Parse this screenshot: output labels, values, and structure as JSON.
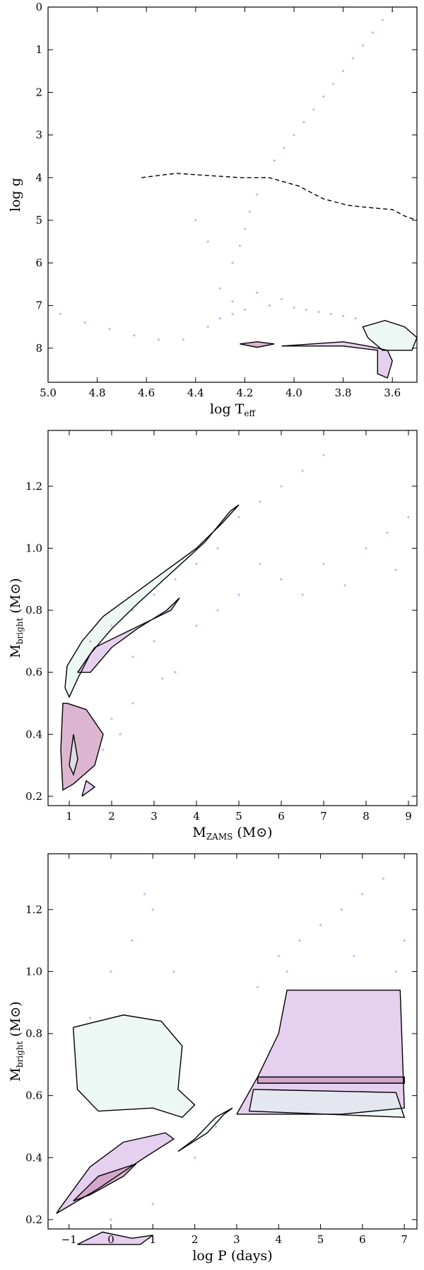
{
  "chart_data": [
    {
      "type": "scatter",
      "xlabel": "log T",
      "xlabel_sub": "eff",
      "ylabel": "log g",
      "xlim": [
        5.0,
        3.5
      ],
      "ylim": [
        8.8,
        0
      ],
      "x_ticks": [
        "5.0",
        "4.8",
        "4.6",
        "4.4",
        "4.2",
        "4.0",
        "3.8",
        "3.6"
      ],
      "y_ticks": [
        "0",
        "1",
        "2",
        "3",
        "4",
        "5",
        "6",
        "7",
        "8"
      ],
      "colors": {
        "points": "#b9c0ea",
        "density_low": "#e3f2ee",
        "density_mid": "#d9a6d8",
        "density_high": "#2f6b3a"
      },
      "series": [
        {
          "name": "",
          "kind": "giant-branch",
          "points": [
            [
              4.25,
              6.0
            ],
            [
              4.22,
              5.6
            ],
            [
              4.2,
              5.2
            ],
            [
              4.18,
              4.8
            ],
            [
              4.15,
              4.4
            ],
            [
              4.12,
              4.0
            ],
            [
              4.08,
              3.6
            ],
            [
              4.04,
              3.3
            ],
            [
              4.0,
              3.0
            ],
            [
              3.96,
              2.7
            ],
            [
              3.92,
              2.4
            ],
            [
              3.88,
              2.1
            ],
            [
              3.84,
              1.8
            ],
            [
              3.8,
              1.5
            ],
            [
              3.76,
              1.2
            ],
            [
              3.72,
              0.9
            ],
            [
              3.68,
              0.6
            ],
            [
              3.64,
              0.3
            ],
            [
              3.6,
              0.1
            ],
            [
              4.3,
              6.6
            ],
            [
              4.35,
              5.5
            ],
            [
              4.4,
              5.0
            ]
          ]
        },
        {
          "name": "",
          "kind": "cooling-sequence",
          "points": [
            [
              4.95,
              7.2
            ],
            [
              4.85,
              7.4
            ],
            [
              4.75,
              7.55
            ],
            [
              4.65,
              7.7
            ],
            [
              4.55,
              7.8
            ],
            [
              4.45,
              7.8
            ],
            [
              4.35,
              7.5
            ],
            [
              4.3,
              7.3
            ],
            [
              4.25,
              7.2
            ],
            [
              4.2,
              7.1
            ],
            [
              4.1,
              7.0
            ],
            [
              4.0,
              7.05
            ],
            [
              3.95,
              7.1
            ],
            [
              3.9,
              7.15
            ],
            [
              3.85,
              7.2
            ],
            [
              3.8,
              7.25
            ],
            [
              3.75,
              7.3
            ],
            [
              4.25,
              6.9
            ],
            [
              4.15,
              6.7
            ],
            [
              4.05,
              6.85
            ]
          ]
        }
      ],
      "dashed_line": [
        [
          4.62,
          4.0
        ],
        [
          4.48,
          3.9
        ],
        [
          4.35,
          3.95
        ],
        [
          4.22,
          4.0
        ],
        [
          4.1,
          4.0
        ],
        [
          3.98,
          4.2
        ],
        [
          3.88,
          4.5
        ],
        [
          3.78,
          4.65
        ],
        [
          3.7,
          4.7
        ],
        [
          3.6,
          4.75
        ],
        [
          3.55,
          4.9
        ],
        [
          3.5,
          5.0
        ]
      ],
      "contours": [
        [
          [
            3.7,
            7.75
          ],
          [
            3.72,
            7.5
          ],
          [
            3.63,
            7.35
          ],
          [
            3.55,
            7.5
          ],
          [
            3.5,
            7.75
          ],
          [
            3.52,
            8.05
          ],
          [
            3.64,
            8.05
          ],
          [
            3.7,
            7.75
          ]
        ],
        [
          [
            4.05,
            7.95
          ],
          [
            3.8,
            7.95
          ],
          [
            3.66,
            8.05
          ],
          [
            3.66,
            8.6
          ],
          [
            3.62,
            8.7
          ],
          [
            3.6,
            8.3
          ],
          [
            3.62,
            8.05
          ],
          [
            3.7,
            7.95
          ],
          [
            3.8,
            7.85
          ],
          [
            4.05,
            7.95
          ]
        ],
        [
          [
            4.15,
            7.85
          ],
          [
            4.22,
            7.9
          ],
          [
            4.15,
            7.98
          ],
          [
            4.08,
            7.9
          ],
          [
            4.15,
            7.85
          ]
        ]
      ]
    },
    {
      "type": "scatter",
      "xlabel": "M",
      "xlabel_sub": "ZAMS",
      "xlabel_unit": " (M⊙)",
      "ylabel": "M",
      "ylabel_sub": "bright",
      "ylabel_unit": " (M⊙)",
      "xlim": [
        0.5,
        9.2
      ],
      "ylim": [
        0.17,
        1.38
      ],
      "x_ticks": [
        "1",
        "2",
        "3",
        "4",
        "5",
        "6",
        "7",
        "8",
        "9"
      ],
      "y_ticks": [
        "0.2",
        "0.4",
        "0.6",
        "0.8",
        "1.0",
        "1.2"
      ],
      "series": [
        {
          "name": "",
          "points": [
            [
              1.2,
              0.6
            ],
            [
              1.5,
              0.7
            ],
            [
              2.0,
              0.75
            ],
            [
              2.5,
              0.8
            ],
            [
              3.0,
              0.85
            ],
            [
              3.5,
              0.9
            ],
            [
              4.0,
              0.95
            ],
            [
              4.5,
              1.0
            ],
            [
              5.0,
              1.1
            ],
            [
              5.5,
              1.15
            ],
            [
              6.0,
              1.2
            ],
            [
              6.5,
              1.25
            ],
            [
              7.0,
              1.3
            ],
            [
              2.5,
              0.65
            ],
            [
              3.0,
              0.7
            ],
            [
              3.5,
              0.6
            ],
            [
              4.0,
              0.75
            ],
            [
              5.0,
              0.85
            ],
            [
              6.0,
              0.9
            ],
            [
              7.0,
              0.95
            ],
            [
              8.0,
              1.0
            ],
            [
              8.5,
              1.05
            ],
            [
              9.0,
              1.1
            ],
            [
              2.0,
              0.45
            ],
            [
              2.5,
              0.5
            ],
            [
              1.8,
              0.35
            ],
            [
              2.2,
              0.4
            ],
            [
              3.2,
              0.58
            ],
            [
              4.5,
              0.8
            ],
            [
              5.5,
              0.95
            ],
            [
              6.5,
              0.85
            ],
            [
              7.5,
              0.88
            ],
            [
              8.7,
              0.93
            ]
          ]
        }
      ],
      "contours": [
        [
          [
            0.9,
            0.55
          ],
          [
            0.95,
            0.62
          ],
          [
            1.3,
            0.7
          ],
          [
            1.8,
            0.78
          ],
          [
            2.5,
            0.85
          ],
          [
            3.2,
            0.92
          ],
          [
            4.0,
            1.0
          ],
          [
            4.6,
            1.08
          ],
          [
            5.0,
            1.14
          ],
          [
            4.8,
            1.12
          ],
          [
            4.2,
            1.02
          ],
          [
            3.4,
            0.92
          ],
          [
            2.6,
            0.82
          ],
          [
            2.0,
            0.74
          ],
          [
            1.5,
            0.66
          ],
          [
            1.2,
            0.58
          ],
          [
            1.0,
            0.52
          ],
          [
            0.9,
            0.55
          ]
        ],
        [
          [
            1.2,
            0.6
          ],
          [
            1.6,
            0.68
          ],
          [
            2.2,
            0.72
          ],
          [
            2.8,
            0.76
          ],
          [
            3.4,
            0.8
          ],
          [
            3.6,
            0.84
          ],
          [
            3.3,
            0.8
          ],
          [
            2.6,
            0.74
          ],
          [
            2.0,
            0.68
          ],
          [
            1.5,
            0.6
          ],
          [
            1.2,
            0.6
          ]
        ],
        [
          [
            0.95,
            0.5
          ],
          [
            1.4,
            0.48
          ],
          [
            1.8,
            0.4
          ],
          [
            1.6,
            0.3
          ],
          [
            1.1,
            0.24
          ],
          [
            0.85,
            0.22
          ],
          [
            0.8,
            0.35
          ],
          [
            0.85,
            0.5
          ],
          [
            0.95,
            0.5
          ]
        ],
        [
          [
            1.0,
            0.3
          ],
          [
            1.1,
            0.4
          ],
          [
            1.2,
            0.32
          ],
          [
            1.1,
            0.27
          ],
          [
            1.0,
            0.3
          ]
        ],
        [
          [
            1.3,
            0.2
          ],
          [
            1.6,
            0.23
          ],
          [
            1.4,
            0.25
          ],
          [
            1.3,
            0.2
          ]
        ]
      ]
    },
    {
      "type": "scatter",
      "xlabel": "log P",
      "xlabel_unit": " (days)",
      "ylabel": "M",
      "ylabel_sub": "bright",
      "ylabel_unit": " (M⊙)",
      "xlim": [
        -1.5,
        7.3
      ],
      "ylim": [
        0.17,
        1.38
      ],
      "x_ticks": [
        "−1",
        "0",
        "1",
        "2",
        "3",
        "4",
        "5",
        "6",
        "7"
      ],
      "y_ticks": [
        "0.2",
        "0.4",
        "0.6",
        "0.8",
        "1.0",
        "1.2"
      ],
      "series": [
        {
          "name": "",
          "points": [
            [
              -0.5,
              0.85
            ],
            [
              0,
              1.0
            ],
            [
              0.5,
              1.1
            ],
            [
              1,
              1.2
            ],
            [
              1.5,
              1.0
            ],
            [
              0.8,
              1.25
            ],
            [
              4,
              1.05
            ],
            [
              4.5,
              1.1
            ],
            [
              5,
              1.15
            ],
            [
              5.5,
              1.2
            ],
            [
              6,
              1.25
            ],
            [
              6.5,
              1.3
            ],
            [
              7,
              1.1
            ],
            [
              6.8,
              1.0
            ],
            [
              4.2,
              1.0
            ],
            [
              3.5,
              0.95
            ],
            [
              5.8,
              1.05
            ],
            [
              -0.8,
              0.3
            ],
            [
              0,
              0.2
            ],
            [
              1,
              0.25
            ],
            [
              2,
              0.4
            ],
            [
              2.5,
              0.5
            ]
          ]
        }
      ],
      "contours": [
        [
          [
            -0.9,
            0.82
          ],
          [
            0.3,
            0.86
          ],
          [
            1.2,
            0.84
          ],
          [
            1.7,
            0.76
          ],
          [
            1.6,
            0.62
          ],
          [
            2.0,
            0.57
          ],
          [
            1.7,
            0.53
          ],
          [
            1.0,
            0.56
          ],
          [
            -0.3,
            0.55
          ],
          [
            -0.8,
            0.62
          ],
          [
            -0.9,
            0.82
          ]
        ],
        [
          [
            -1.3,
            0.22
          ],
          [
            -0.3,
            0.3
          ],
          [
            0.8,
            0.4
          ],
          [
            1.5,
            0.46
          ],
          [
            1.3,
            0.48
          ],
          [
            0.3,
            0.45
          ],
          [
            -0.5,
            0.37
          ],
          [
            -1.2,
            0.24
          ],
          [
            -1.3,
            0.22
          ]
        ],
        [
          [
            -0.9,
            0.26
          ],
          [
            -0.3,
            0.34
          ],
          [
            0.6,
            0.38
          ],
          [
            0.3,
            0.34
          ],
          [
            -0.5,
            0.28
          ],
          [
            -0.9,
            0.26
          ]
        ],
        [
          [
            1.6,
            0.42
          ],
          [
            2.3,
            0.48
          ],
          [
            2.7,
            0.54
          ],
          [
            2.9,
            0.56
          ],
          [
            2.5,
            0.53
          ],
          [
            2.0,
            0.46
          ],
          [
            1.6,
            0.42
          ]
        ],
        [
          [
            3.0,
            0.54
          ],
          [
            3.5,
            0.66
          ],
          [
            4.0,
            0.8
          ],
          [
            4.2,
            0.94
          ],
          [
            6.9,
            0.94
          ],
          [
            7.0,
            0.56
          ],
          [
            5.5,
            0.54
          ],
          [
            3.0,
            0.54
          ]
        ],
        [
          [
            3.5,
            0.66
          ],
          [
            7.0,
            0.66
          ],
          [
            7.0,
            0.64
          ],
          [
            3.5,
            0.64
          ],
          [
            3.5,
            0.66
          ]
        ],
        [
          [
            3.4,
            0.62
          ],
          [
            6.8,
            0.61
          ],
          [
            7.0,
            0.53
          ],
          [
            3.3,
            0.55
          ],
          [
            3.4,
            0.62
          ]
        ],
        [
          [
            -0.8,
            0.12
          ],
          [
            -0.2,
            0.16
          ],
          [
            0.5,
            0.14
          ],
          [
            1.0,
            0.15
          ],
          [
            0.7,
            0.12
          ],
          [
            -0.8,
            0.12
          ]
        ]
      ]
    }
  ]
}
